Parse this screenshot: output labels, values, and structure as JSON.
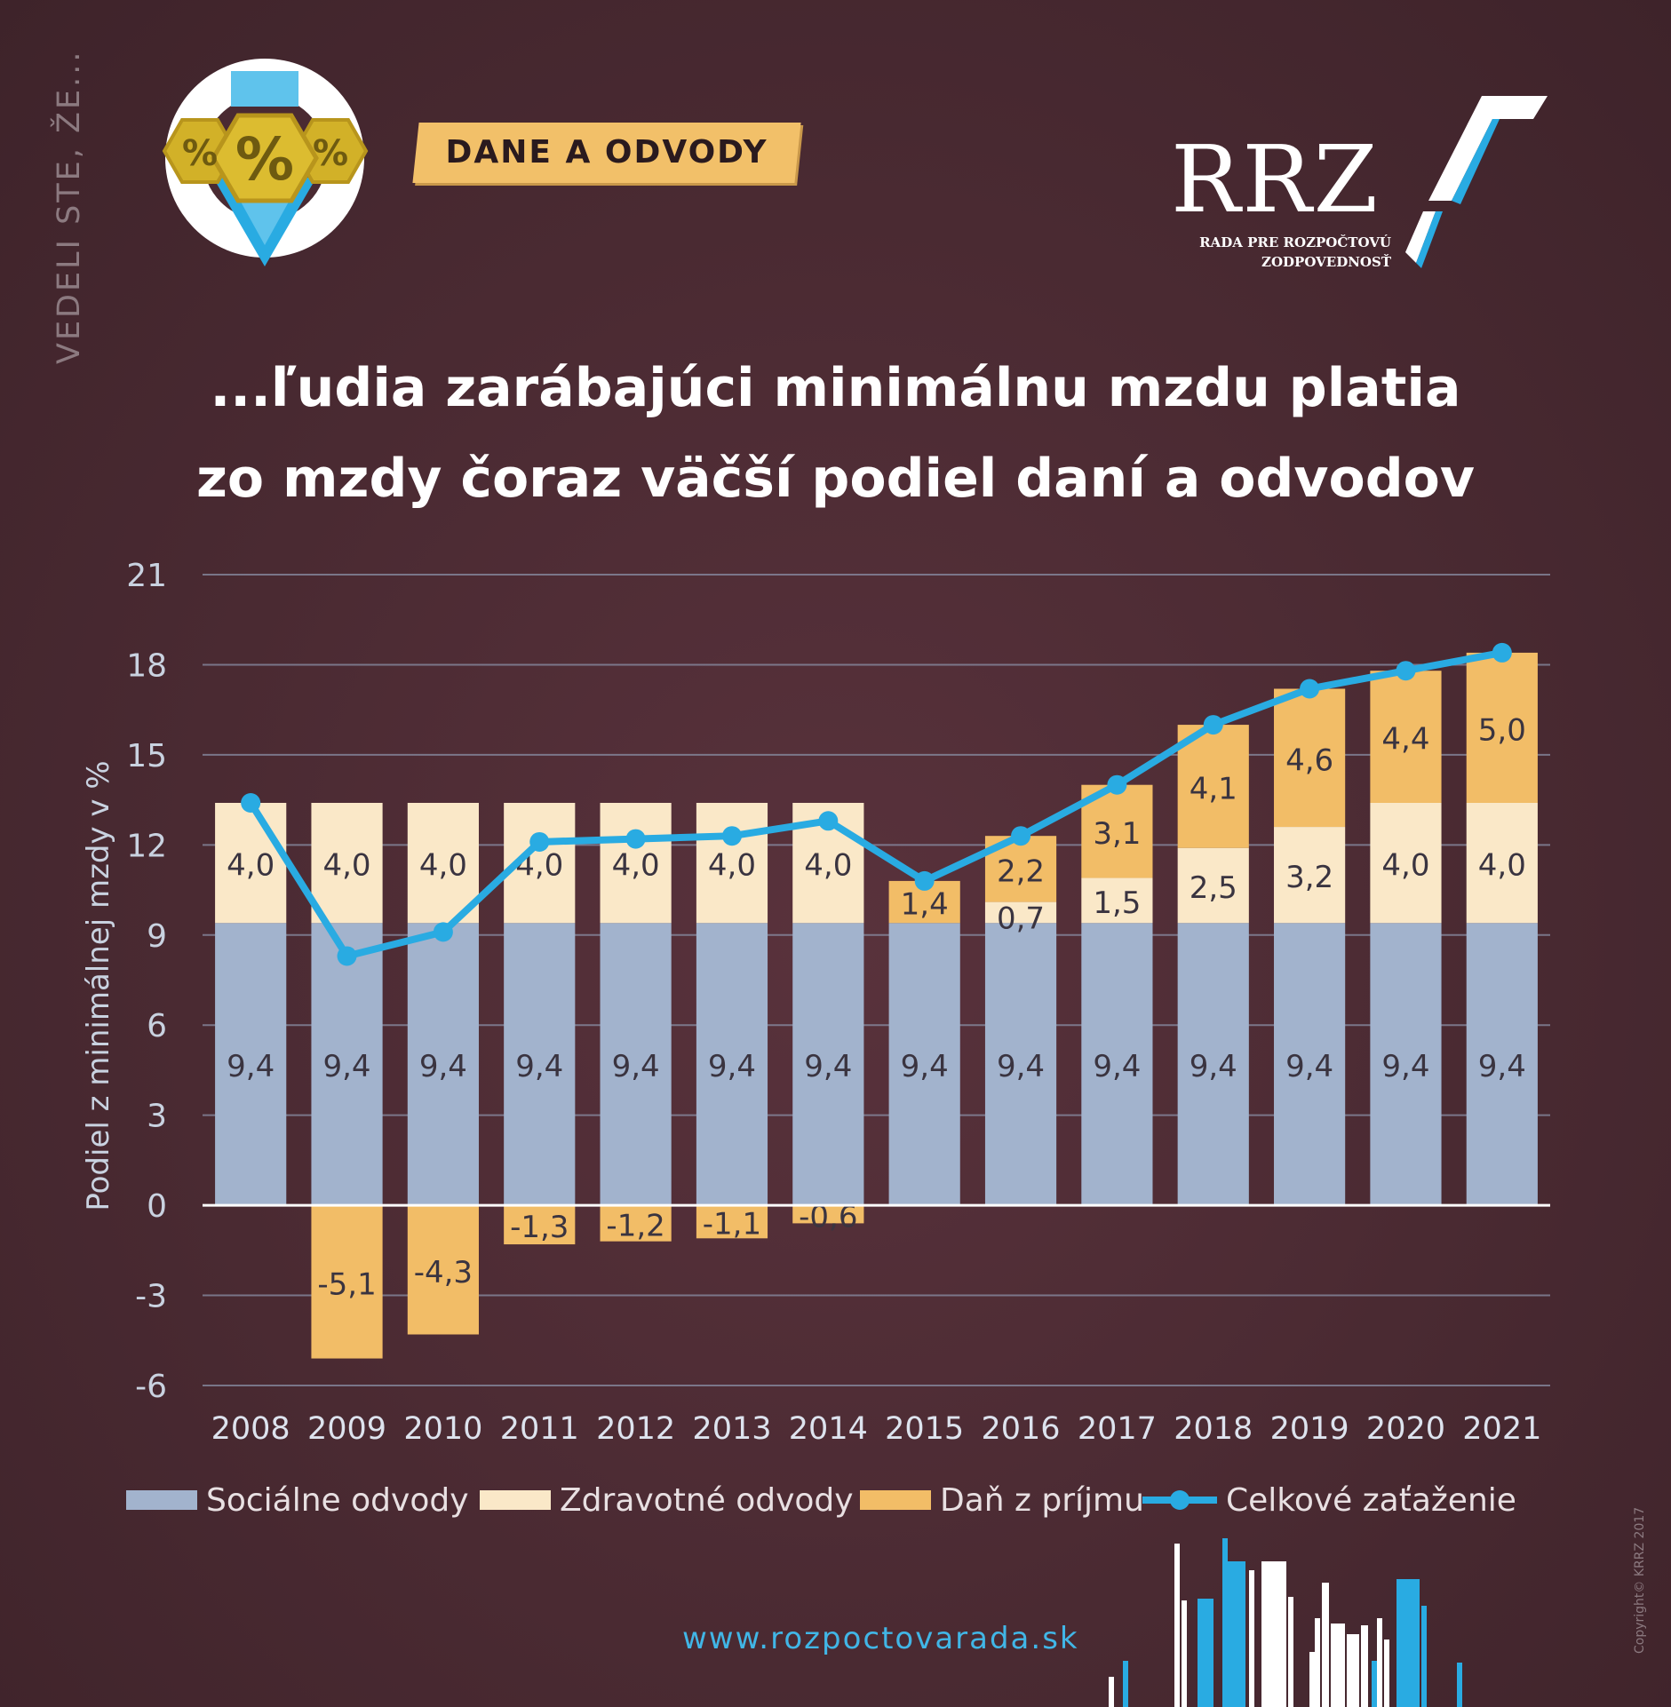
{
  "header": {
    "side_text": "VEDELI STE, ŽE...",
    "tag_label": "DANE A ODVODY",
    "badge_symbol": "%",
    "logo_name": "RRZ",
    "logo_subtitle_1": "RADA PRE ROZPOČTOVÚ",
    "logo_subtitle_2": "ZODPOVEDNOSŤ"
  },
  "title_line1": "...ľudia zarábajúci minimálnu mzdu platia",
  "title_line2": "zo mzdy čoraz väčší podiel daní a odvodov",
  "footer": {
    "url": "www.rozpoctovarada.sk",
    "copyright": "Copyright© KRRZ 2017"
  },
  "colors": {
    "social": "#a2b3cd",
    "health": "#fae8c8",
    "tax": "#f2bd67",
    "total": "#29abe2"
  },
  "chart_data": {
    "type": "bar",
    "stacked": true,
    "ylabel": "Podiel z minimálnej mzdy v %",
    "ylim": [
      -6,
      21
    ],
    "yticks": [
      -6,
      -3,
      0,
      3,
      6,
      9,
      12,
      15,
      18,
      21
    ],
    "ytick_labels": [
      "-6",
      "-3",
      "0",
      "3",
      "6",
      "9",
      "12",
      "15",
      "18",
      "21"
    ],
    "categories": [
      "2008",
      "2009",
      "2010",
      "2011",
      "2012",
      "2013",
      "2014",
      "2015",
      "2016",
      "2017",
      "2018",
      "2019",
      "2020",
      "2021"
    ],
    "series": [
      {
        "name": "Sociálne odvody",
        "values": [
          9.4,
          9.4,
          9.4,
          9.4,
          9.4,
          9.4,
          9.4,
          9.4,
          9.4,
          9.4,
          9.4,
          9.4,
          9.4,
          9.4
        ],
        "labels": [
          "9,4",
          "9,4",
          "9,4",
          "9,4",
          "9,4",
          "9,4",
          "9,4",
          "9,4",
          "9,4",
          "9,4",
          "9,4",
          "9,4",
          "9,4",
          "9,4"
        ]
      },
      {
        "name": "Zdravotné odvody",
        "values": [
          4.0,
          4.0,
          4.0,
          4.0,
          4.0,
          4.0,
          4.0,
          0,
          0.7,
          1.5,
          2.5,
          3.2,
          4.0,
          4.0
        ],
        "labels": [
          "4,0",
          "4,0",
          "4,0",
          "4,0",
          "4,0",
          "4,0",
          "4,0",
          "",
          "0,7",
          "1,5",
          "2,5",
          "3,2",
          "4,0",
          "4,0"
        ]
      },
      {
        "name": "Daň z príjmu",
        "values": [
          0,
          -5.1,
          -4.3,
          -1.3,
          -1.2,
          -1.1,
          -0.6,
          1.4,
          2.2,
          3.1,
          4.1,
          4.6,
          4.4,
          5.0
        ],
        "labels": [
          "",
          "-5,1",
          "-4,3",
          "-1,3",
          "-1,2",
          "-1,1",
          "-0,6",
          "1,4",
          "2,2",
          "3,1",
          "4,1",
          "4,6",
          "4,4",
          "5,0"
        ]
      },
      {
        "name": "Celkové zaťaženie",
        "type": "line",
        "values": [
          13.4,
          8.3,
          9.1,
          12.1,
          12.2,
          12.3,
          12.8,
          10.8,
          12.3,
          14.0,
          16.0,
          17.2,
          17.8,
          18.4
        ]
      }
    ],
    "legend_position": "bottom",
    "grid": true
  }
}
